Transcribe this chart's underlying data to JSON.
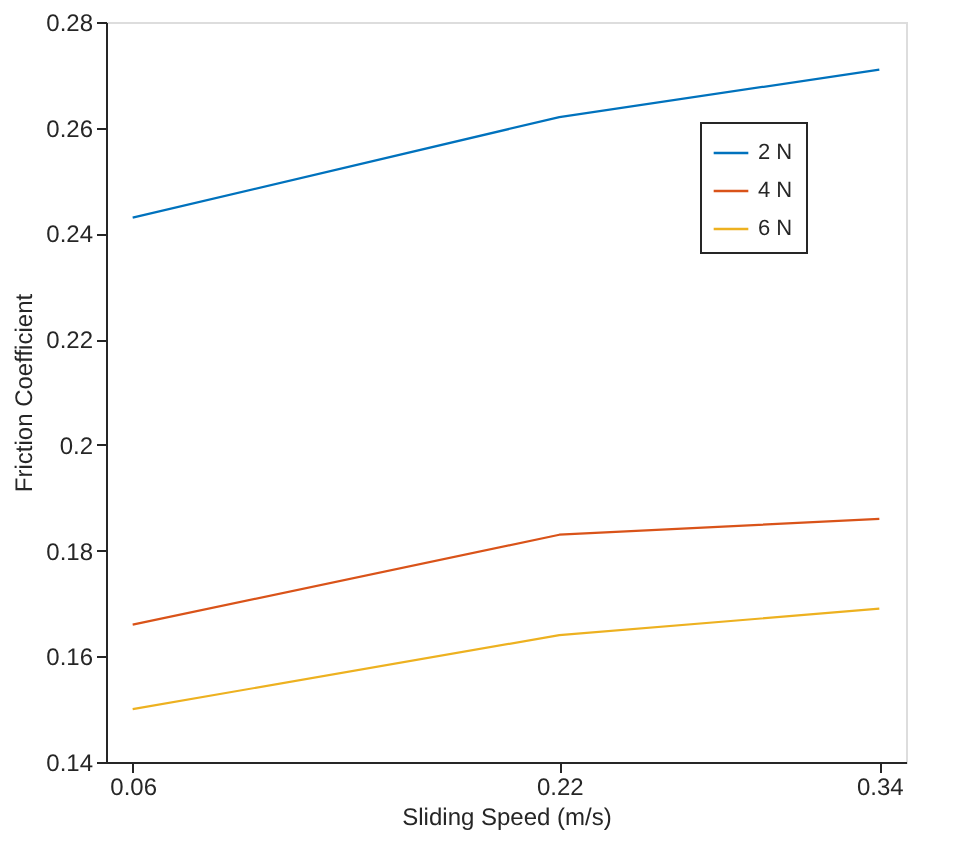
{
  "chart_data": {
    "type": "line",
    "xlabel": "Sliding Speed (m/s)",
    "ylabel": "Friction Coefficient",
    "x": [
      0.06,
      0.22,
      0.34
    ],
    "series": [
      {
        "name": "2 N",
        "color": "#0072bd",
        "values": [
          0.243,
          0.262,
          0.271
        ]
      },
      {
        "name": "4 N",
        "color": "#d95319",
        "values": [
          0.166,
          0.183,
          0.186
        ]
      },
      {
        "name": "6 N",
        "color": "#edb120",
        "values": [
          0.15,
          0.164,
          0.169
        ]
      }
    ],
    "xlim": [
      0.05,
      0.35
    ],
    "xticks": [
      0.06,
      0.22,
      0.34
    ],
    "ylim": [
      0.14,
      0.28
    ],
    "yticks": [
      0.14,
      0.16,
      0.18,
      0.2,
      0.22,
      0.24,
      0.26,
      0.28
    ],
    "grid": false,
    "legend": "top right",
    "marker": "none",
    "line_style": "solid"
  }
}
